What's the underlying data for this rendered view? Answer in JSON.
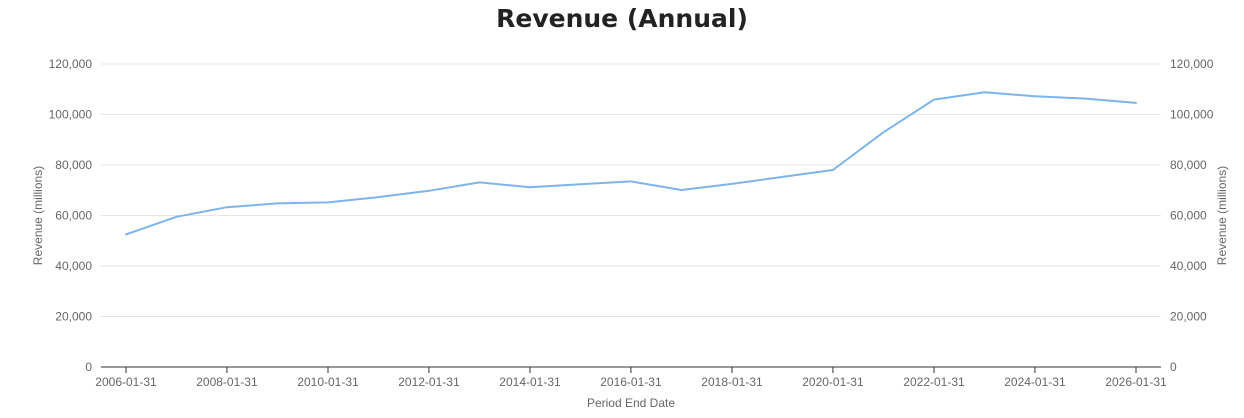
{
  "chart_data": {
    "type": "line",
    "title": "Revenue (Annual)",
    "xlabel": "Period End Date",
    "ylabel": "Revenue (millions)",
    "ylabel_right": "Revenue (millions)",
    "ylim": [
      0,
      120000
    ],
    "y_ticks": [
      0,
      20000,
      40000,
      60000,
      80000,
      100000,
      120000
    ],
    "y_tick_labels": [
      "0",
      "20,000",
      "40,000",
      "60,000",
      "80,000",
      "100,000",
      "120,000"
    ],
    "x_tick_labels": [
      "2006-01-31",
      "2008-01-31",
      "2010-01-31",
      "2012-01-31",
      "2014-01-31",
      "2016-01-31",
      "2018-01-31",
      "2020-01-31",
      "2022-01-31",
      "2024-01-31",
      "2026-01-31"
    ],
    "grid": true,
    "legend": "none",
    "line_color": "#7cb5ec",
    "series": [
      {
        "x": [
          "2006-01-31",
          "2007-01-31",
          "2008-01-31",
          "2009-01-31",
          "2010-01-31",
          "2011-01-31",
          "2012-01-31",
          "2013-01-31",
          "2014-01-31",
          "2015-01-31",
          "2016-01-31",
          "2017-01-31",
          "2018-01-31",
          "2019-01-31",
          "2020-01-31",
          "2021-01-31",
          "2022-01-31",
          "2023-01-31",
          "2024-01-31",
          "2025-01-31",
          "2026-01-31"
        ],
        "values": [
          52500,
          59500,
          63300,
          64800,
          65200,
          67300,
          69800,
          73100,
          71200,
          72400,
          73500,
          70100,
          72500,
          75300,
          78000,
          93000,
          105900,
          108800,
          107200,
          106300,
          104600
        ]
      }
    ]
  }
}
